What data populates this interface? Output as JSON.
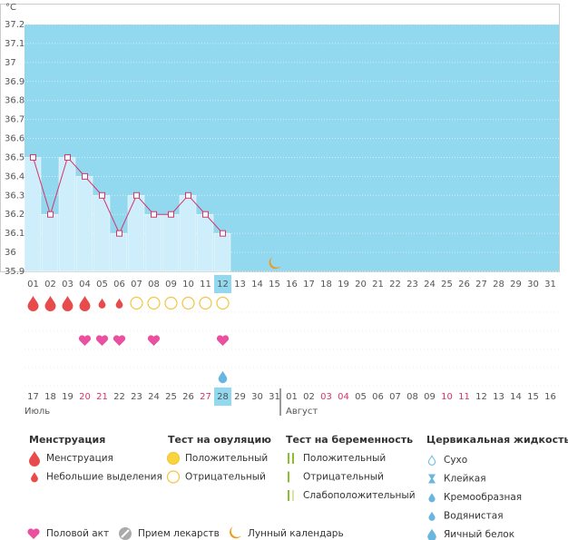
{
  "chart_data": {
    "type": "line",
    "ylabel": "°C",
    "categories": [
      "01",
      "02",
      "03",
      "04",
      "05",
      "06",
      "07",
      "08",
      "09",
      "10",
      "11",
      "12",
      "13",
      "14",
      "15",
      "16",
      "17",
      "18",
      "19",
      "20",
      "21",
      "22",
      "23",
      "24",
      "25",
      "26",
      "27",
      "28",
      "29",
      "30",
      "31"
    ],
    "values": [
      36.5,
      36.2,
      36.5,
      36.4,
      36.3,
      36.1,
      36.3,
      36.2,
      36.2,
      36.3,
      36.2,
      36.1,
      null,
      null,
      null,
      null,
      null,
      null,
      null,
      null,
      null,
      null,
      null,
      null,
      null,
      null,
      null,
      null,
      null,
      null,
      null
    ],
    "ylim": [
      35.9,
      37.2
    ],
    "yticks": [
      35.9,
      36,
      36.1,
      36.2,
      36.3,
      36.4,
      36.5,
      36.6,
      36.7,
      36.8,
      36.9,
      37,
      37.1,
      37.2
    ],
    "color": "#d6336c",
    "background": "#92d8ef",
    "bar_color": "#cdeefa",
    "grid": true,
    "today_index": 11,
    "menstruation_days": [
      1,
      2,
      3,
      4
    ],
    "spotting_days": [
      5,
      6
    ],
    "ovulation_negative_days": [
      7,
      8,
      9,
      10,
      11,
      12
    ],
    "intercourse_days": [
      4,
      5,
      6,
      8,
      12
    ],
    "egg_white_days": [
      12
    ],
    "moon_day": 15,
    "cycle_days": [
      "17",
      "18",
      "19",
      "20",
      "21",
      "22",
      "23",
      "24",
      "25",
      "26",
      "27",
      "28",
      "29",
      "30",
      "31",
      "01",
      "02",
      "03",
      "04",
      "05",
      "06",
      "07",
      "08",
      "09",
      "10",
      "11",
      "12",
      "13",
      "14",
      "15",
      "16"
    ],
    "weekend_indices": [
      3,
      4,
      10,
      17,
      18,
      24,
      25
    ],
    "months": [
      {
        "label": "Июль",
        "index": 0
      },
      {
        "label": "Август",
        "index": 15
      }
    ]
  },
  "legend": {
    "groups": [
      {
        "title": "Менструация",
        "items": [
          "Менструация",
          "Небольшие выделения"
        ]
      },
      {
        "title": "Тест на овуляцию",
        "items": [
          "Положительный",
          "Отрицательный"
        ]
      },
      {
        "title": "Тест на беременность",
        "items": [
          "Положительный",
          "Отрицательный",
          "Слабоположительный"
        ]
      },
      {
        "title": "Цервикальная жидкость",
        "items": [
          "Сухо",
          "Клейкая",
          "Кремообразная",
          "Водянистая",
          "Яичный белок"
        ]
      }
    ],
    "bottom": [
      "Половой акт",
      "Прием лекарств",
      "Лунный календарь"
    ]
  }
}
